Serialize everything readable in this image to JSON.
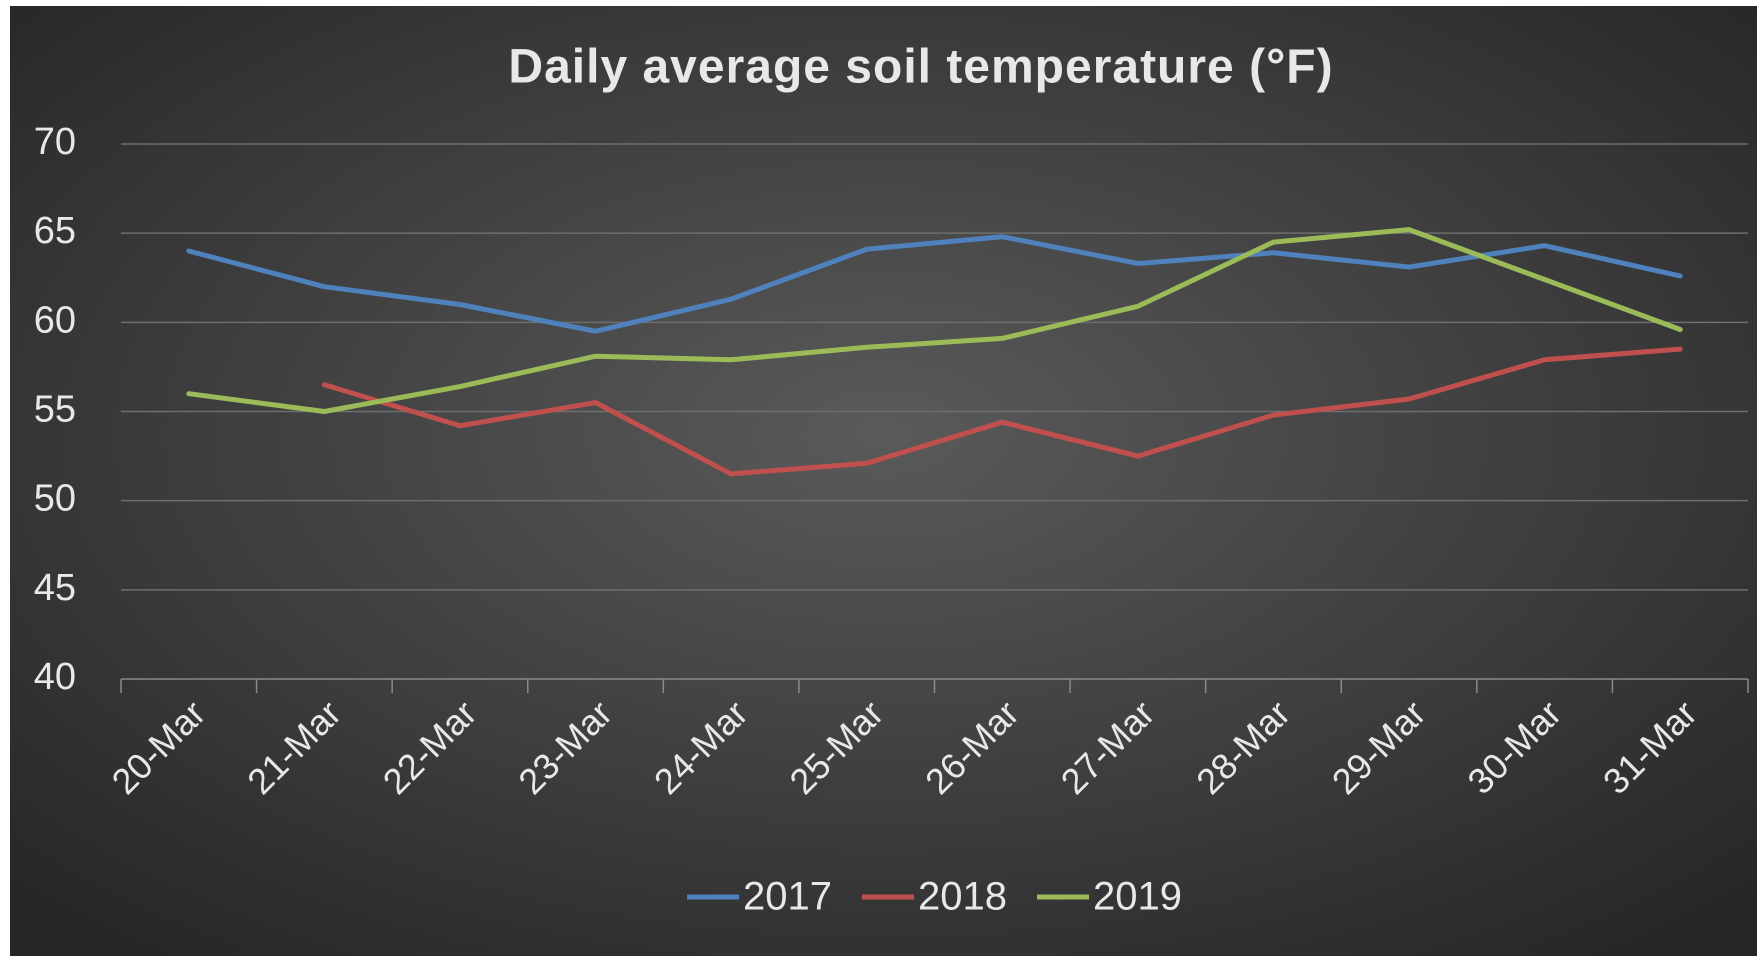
{
  "chart_data": {
    "type": "line",
    "title": "Daily average soil temperature (°F)",
    "categories": [
      "20-Mar",
      "21-Mar",
      "22-Mar",
      "23-Mar",
      "24-Mar",
      "25-Mar",
      "26-Mar",
      "27-Mar",
      "28-Mar",
      "29-Mar",
      "30-Mar",
      "31-Mar"
    ],
    "series": [
      {
        "name": "2017",
        "color": "#4f81bd",
        "values": [
          64.0,
          62.0,
          61.0,
          59.5,
          61.3,
          64.1,
          64.8,
          63.3,
          63.9,
          63.1,
          64.3,
          62.6
        ]
      },
      {
        "name": "2018",
        "color": "#c0504d",
        "values": [
          null,
          56.5,
          54.2,
          55.5,
          51.5,
          52.1,
          54.4,
          52.5,
          54.8,
          55.7,
          57.9,
          58.5
        ]
      },
      {
        "name": "2019",
        "color": "#9bbb59",
        "values": [
          56.0,
          55.0,
          56.4,
          58.1,
          57.9,
          58.6,
          59.1,
          60.9,
          64.5,
          65.2,
          62.4,
          59.6
        ]
      }
    ],
    "ylim": [
      40,
      70
    ],
    "yticks": [
      40,
      45,
      50,
      55,
      60,
      65,
      70
    ],
    "grid": true,
    "legend": "bottom"
  }
}
